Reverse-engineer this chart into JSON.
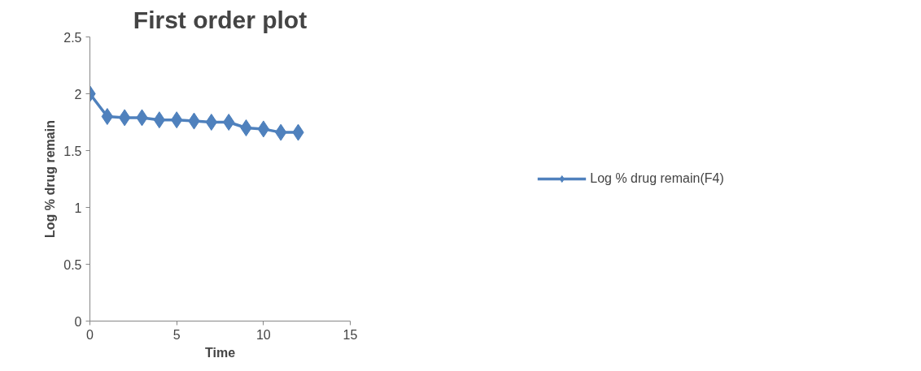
{
  "chart_data": {
    "type": "line",
    "title": "First order plot",
    "xlabel": "Time",
    "ylabel": "Log % drug remain",
    "x": [
      0,
      1,
      2,
      3,
      4,
      5,
      6,
      7,
      8,
      9,
      10,
      11,
      12
    ],
    "series": [
      {
        "name": "Log % drug remain(F4)",
        "color": "#4f81bd",
        "values": [
          2.0,
          1.8,
          1.79,
          1.79,
          1.77,
          1.77,
          1.76,
          1.75,
          1.75,
          1.7,
          1.69,
          1.66,
          1.66
        ]
      }
    ],
    "xlim": [
      0,
      15
    ],
    "xticks": [
      0,
      5,
      10,
      15
    ],
    "ylim": [
      0,
      2.5
    ],
    "yticks": [
      0,
      0.5,
      1,
      1.5,
      2,
      2.5
    ],
    "grid": false,
    "legend": "right",
    "marker": "diamond",
    "line_style": "solid"
  }
}
